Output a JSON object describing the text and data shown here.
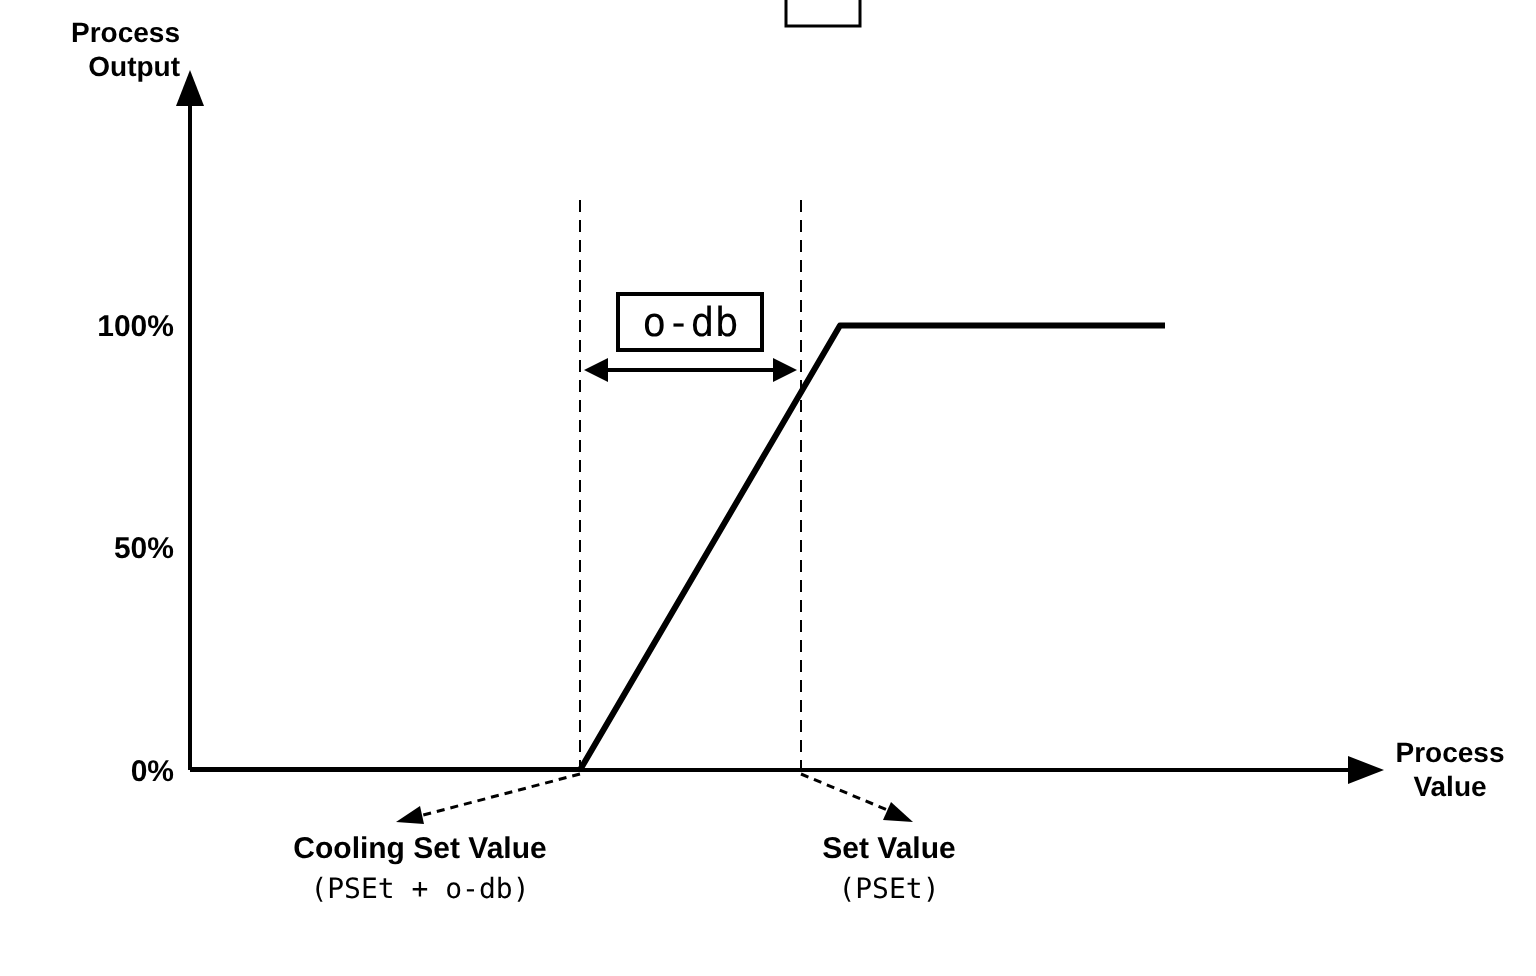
{
  "chart_data": {
    "type": "line",
    "xlabel": "Process Value",
    "ylabel": "Process Output",
    "categories": [
      null,
      null,
      null,
      null,
      null,
      null,
      null,
      null,
      null,
      null,
      null,
      null,
      null,
      null,
      null,
      null,
      null,
      null,
      null
    ],
    "series": [
      {
        "color": "#000000",
        "values": [
          0,
          0,
          0,
          0,
          0,
          0,
          0,
          25,
          50,
          75,
          100,
          100,
          100,
          100,
          100,
          100,
          null,
          null,
          null
        ]
      }
    ],
    "ylim": [
      0,
      153
    ],
    "yticks": [
      {
        "value": 0,
        "label": "0%"
      },
      {
        "value": 50,
        "label": "50%"
      },
      {
        "value": 100,
        "label": "100%"
      }
    ],
    "tick_labels": "y",
    "annotations": [
      "Cooling Set Value",
      "(PSEt + o-db)",
      "Set Value",
      "(PSEt)",
      "o-db"
    ]
  }
}
